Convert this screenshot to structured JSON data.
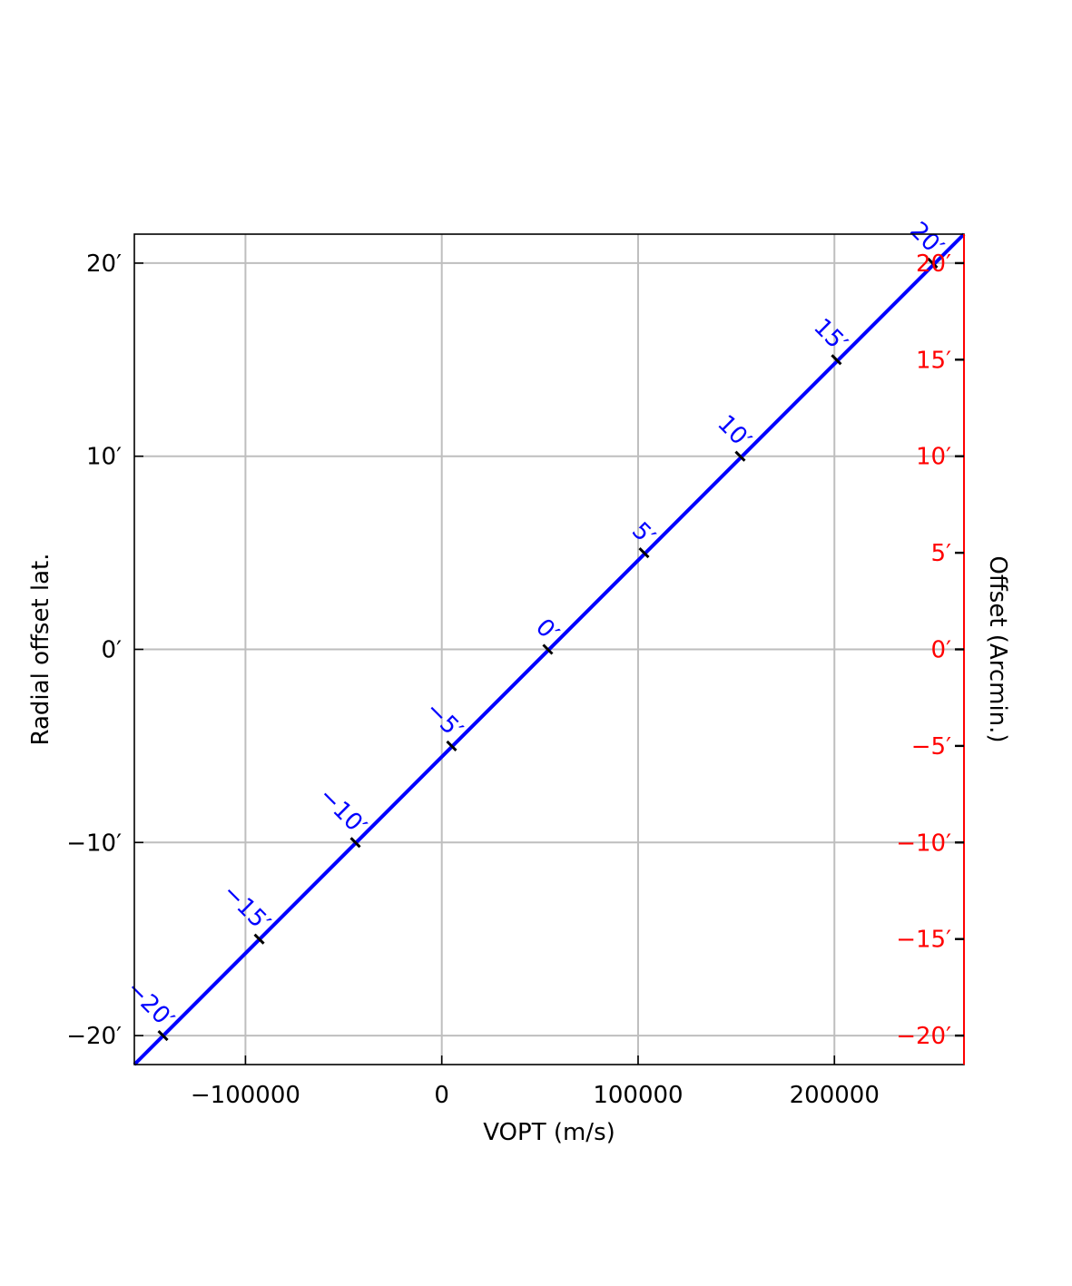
{
  "chart_data": {
    "type": "line",
    "xlabel": "VOPT (m/s)",
    "ylabel": "Radial offset lat.",
    "right_ylabel": "Offset (Arcmin.)",
    "xlim": [
      -156600,
      266000
    ],
    "ylim": [
      -21.5,
      21.5
    ],
    "grid": true,
    "x_ticks": [
      {
        "value": -100000,
        "label": "−100000"
      },
      {
        "value": 0,
        "label": "0"
      },
      {
        "value": 100000,
        "label": "100000"
      },
      {
        "value": 200000,
        "label": "200000"
      }
    ],
    "left_y_ticks": [
      {
        "value": -20,
        "label": "−20′"
      },
      {
        "value": -10,
        "label": "−10′"
      },
      {
        "value": 0,
        "label": "0′"
      },
      {
        "value": 10,
        "label": "10′"
      },
      {
        "value": 20,
        "label": "20′"
      }
    ],
    "right_y_ticks": [
      {
        "value": -20,
        "label": "−20′"
      },
      {
        "value": -15,
        "label": "−15′"
      },
      {
        "value": -10,
        "label": "−10′"
      },
      {
        "value": -5,
        "label": "−5′"
      },
      {
        "value": 0,
        "label": "0′"
      },
      {
        "value": 5,
        "label": "5′"
      },
      {
        "value": 10,
        "label": "10′"
      },
      {
        "value": 15,
        "label": "15′"
      },
      {
        "value": 20,
        "label": "20′"
      }
    ],
    "series": [
      {
        "color": "#0000ff",
        "x": [
          -156600,
          266000
        ],
        "y": [
          -21.5,
          21.5
        ]
      }
    ],
    "line_ticks": [
      {
        "x": -142000,
        "y": -20,
        "label": "−20′"
      },
      {
        "x": -93000,
        "y": -15,
        "label": "−15′"
      },
      {
        "x": -44000,
        "y": -10,
        "label": "−10′"
      },
      {
        "x": 5000,
        "y": -5,
        "label": "−5′"
      },
      {
        "x": 54000,
        "y": 0,
        "label": "0′"
      },
      {
        "x": 103000,
        "y": 5,
        "label": "5′"
      },
      {
        "x": 152000,
        "y": 10,
        "label": "10′"
      },
      {
        "x": 201000,
        "y": 15,
        "label": "15′"
      },
      {
        "x": 250000,
        "y": 20,
        "label": "20′"
      }
    ],
    "colors": {
      "line": "#0000ff",
      "grid": "#bebebe",
      "right_axis": "#ff0000",
      "text": "#000000"
    }
  }
}
